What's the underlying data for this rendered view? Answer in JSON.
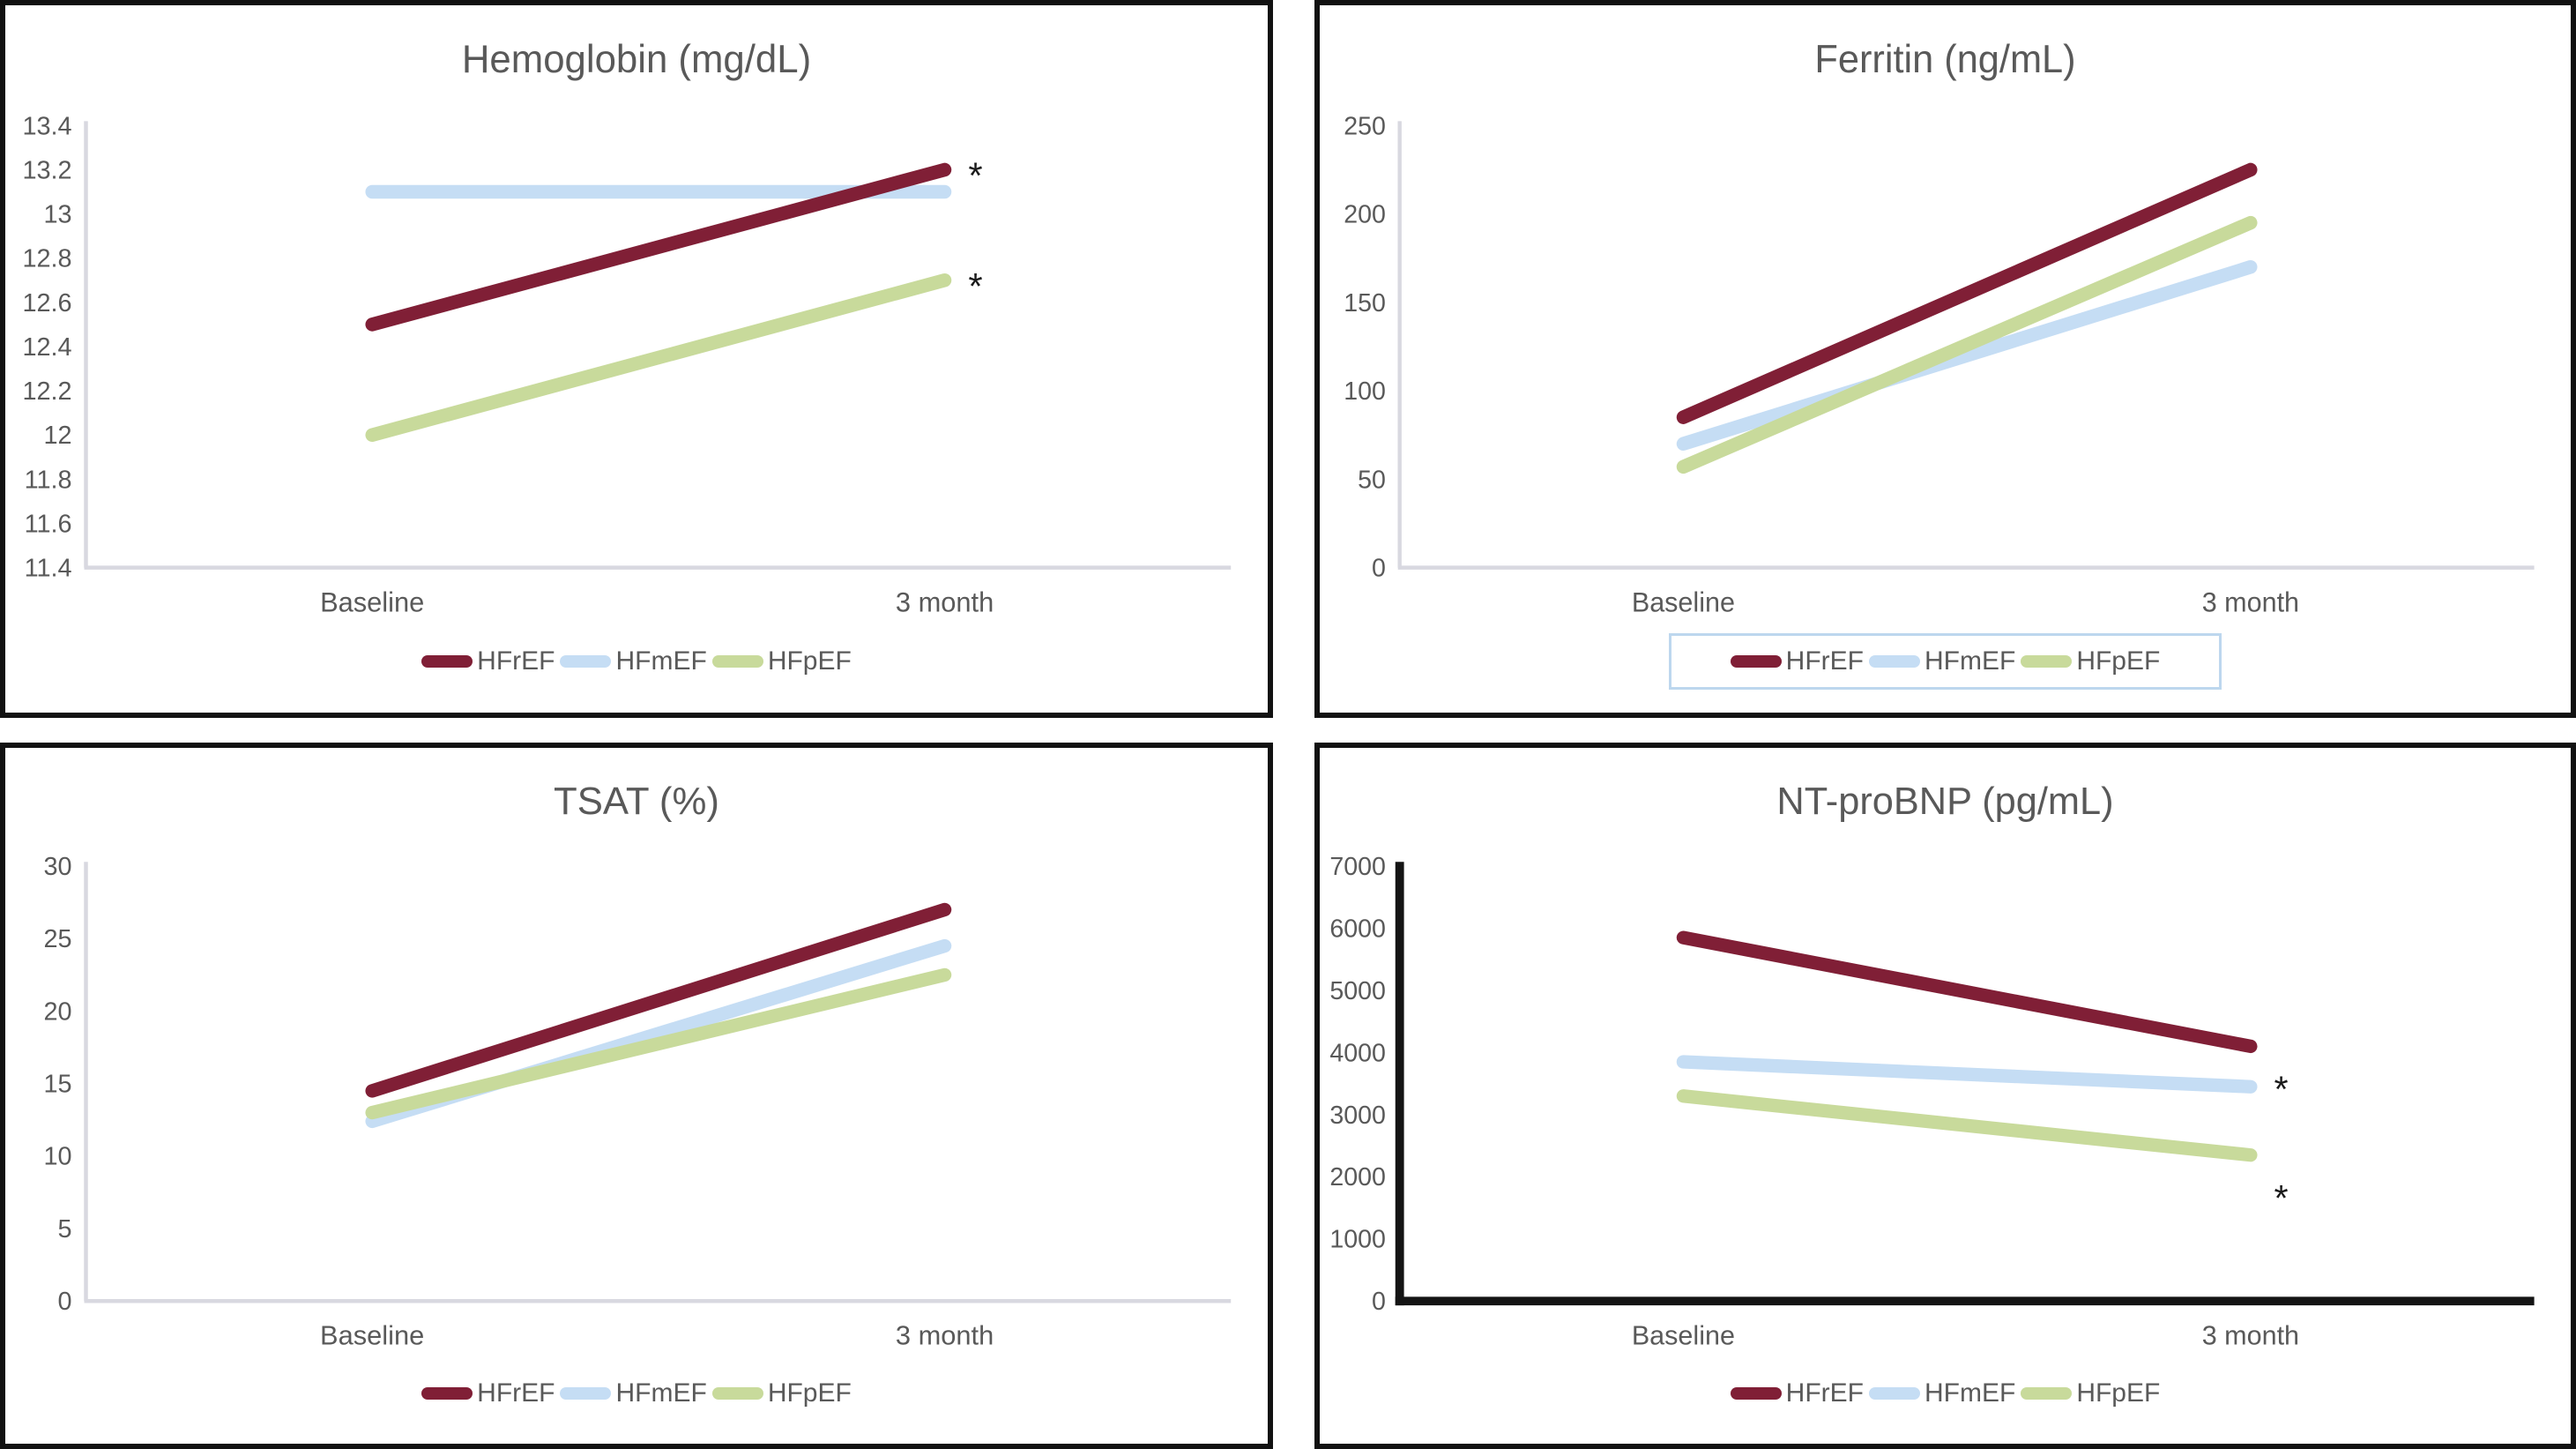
{
  "figure": {
    "layout": "2x2-grid",
    "x_axis_categories": [
      "Baseline",
      "3 month"
    ],
    "legend_labels": [
      "HFrEF",
      "HFmEF",
      "HFpEF"
    ],
    "significance_marker": "*"
  },
  "colors": {
    "HFrEF": "#801F36",
    "HFmEF": "#C5DDF4",
    "HFpEF": "#C8DA9B",
    "axis_light": "#D8D8E0",
    "axis_black": "#141414",
    "text_gray": "#595959",
    "legend_box_border": "#BDD7EE",
    "panel_border": "#111111",
    "annotation": "#1a1a1a"
  },
  "chart_data": [
    {
      "id": "hemoglobin",
      "type": "line",
      "title": "Hemoglobin (mg/dL)",
      "categories": [
        "Baseline",
        "3 month"
      ],
      "ylim": [
        11.4,
        13.4
      ],
      "ytick_labels": [
        "13.4",
        "13.2",
        "13",
        "12.8",
        "12.6",
        "12.4",
        "12.2",
        "12",
        "11.8",
        "11.6",
        "11.4"
      ],
      "grid": false,
      "legend_position": "bottom",
      "legend_boxed": false,
      "axis_style": "light",
      "annotation_placement": "right",
      "series": [
        {
          "name": "HFrEF",
          "values": [
            12.5,
            13.2
          ],
          "end_annotation": "*"
        },
        {
          "name": "HFmEF",
          "values": [
            13.1,
            13.1
          ],
          "end_annotation": ""
        },
        {
          "name": "HFpEF",
          "values": [
            12.0,
            12.7
          ],
          "end_annotation": "*"
        }
      ]
    },
    {
      "id": "ferritin",
      "type": "line",
      "title": "Ferritin (ng/mL)",
      "categories": [
        "Baseline",
        "3 month"
      ],
      "ylim": [
        0,
        250
      ],
      "ytick_labels": [
        "250",
        "200",
        "150",
        "100",
        "50",
        "0"
      ],
      "grid": false,
      "legend_position": "bottom",
      "legend_boxed": true,
      "axis_style": "light",
      "annotation_placement": "right",
      "series": [
        {
          "name": "HFrEF",
          "values": [
            85,
            225
          ],
          "end_annotation": ""
        },
        {
          "name": "HFmEF",
          "values": [
            70,
            170
          ],
          "end_annotation": ""
        },
        {
          "name": "HFpEF",
          "values": [
            57,
            195
          ],
          "end_annotation": ""
        }
      ]
    },
    {
      "id": "tsat",
      "type": "line",
      "title": "TSAT (%)",
      "categories": [
        "Baseline",
        "3 month"
      ],
      "ylim": [
        0,
        30
      ],
      "ytick_labels": [
        "30",
        "25",
        "20",
        "15",
        "10",
        "5",
        "0"
      ],
      "grid": false,
      "legend_position": "bottom",
      "legend_boxed": false,
      "axis_style": "light",
      "annotation_placement": "right",
      "series": [
        {
          "name": "HFrEF",
          "values": [
            14.5,
            27
          ],
          "end_annotation": ""
        },
        {
          "name": "HFmEF",
          "values": [
            12.4,
            24.5
          ],
          "end_annotation": ""
        },
        {
          "name": "HFpEF",
          "values": [
            13.0,
            22.5
          ],
          "end_annotation": ""
        }
      ]
    },
    {
      "id": "nt_probnp",
      "type": "line",
      "title": "NT-proBNP (pg/mL)",
      "categories": [
        "Baseline",
        "3 month"
      ],
      "ylim": [
        0,
        7000
      ],
      "ytick_labels": [
        "7000",
        "6000",
        "5000",
        "4000",
        "3000",
        "2000",
        "1000",
        "0"
      ],
      "grid": false,
      "legend_position": "bottom",
      "legend_boxed": false,
      "axis_style": "black",
      "annotation_placement": "below-right",
      "series": [
        {
          "name": "HFrEF",
          "values": [
            5850,
            4100
          ],
          "end_annotation": "*"
        },
        {
          "name": "HFmEF",
          "values": [
            3850,
            3450
          ],
          "end_annotation": ""
        },
        {
          "name": "HFpEF",
          "values": [
            3300,
            2350
          ],
          "end_annotation": "*"
        }
      ]
    }
  ]
}
